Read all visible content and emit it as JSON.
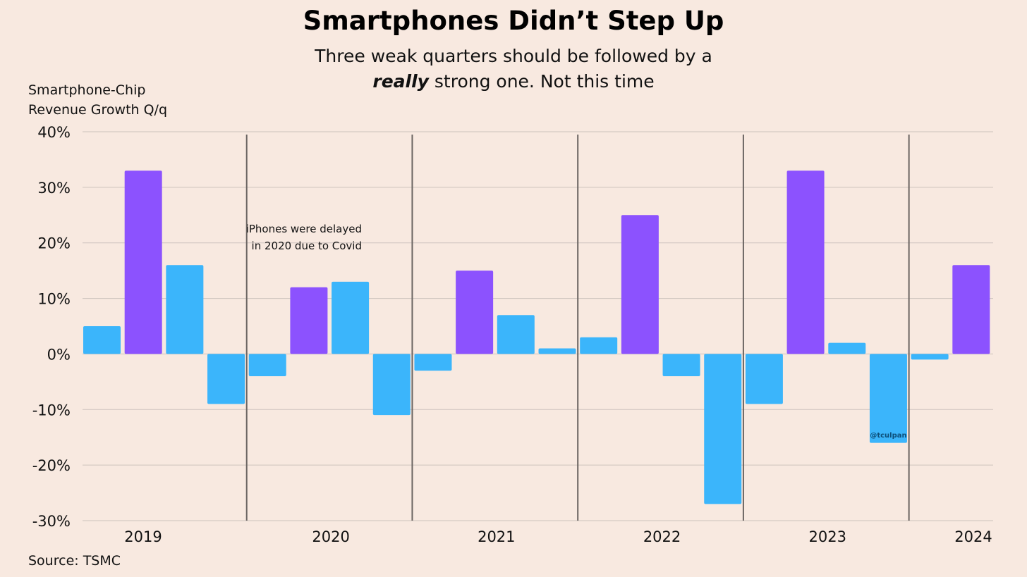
{
  "chart_data": {
    "type": "bar",
    "title": "Smartphones Didn’t Step Up",
    "subtitle_line1": "Three weak quarters should be followed by a",
    "subtitle_emphasis": "really",
    "subtitle_line2_rest": " strong one. Not this time",
    "ylabel_line1": "Smartphone-Chip",
    "ylabel_line2": "Revenue Growth Q/q",
    "source": "Source: TSMC",
    "annotation_line1": "iPhones were delayed",
    "annotation_line2": "in 2020 due to Covid",
    "watermark": "@tculpan",
    "ylim": [
      -30,
      40
    ],
    "yticks": [
      40,
      30,
      20,
      10,
      0,
      -10,
      -20,
      -30
    ],
    "ytick_labels": [
      "40%",
      "30%",
      "20%",
      "10%",
      "0%",
      "-10%",
      "-20%",
      "-30%"
    ],
    "year_labels": [
      "2019",
      "2020",
      "2021",
      "2022",
      "2023",
      "2024"
    ],
    "grid": true,
    "colors": {
      "regular": "#3bb5fb",
      "strong": "#8c52fe",
      "divider": "#6b6562",
      "grid": "#cdc3bd"
    },
    "quarters": [
      {
        "year": "2019",
        "q": "Q1",
        "value": 5,
        "highlight": false
      },
      {
        "year": "2019",
        "q": "Q2",
        "value": 33,
        "highlight": true
      },
      {
        "year": "2019",
        "q": "Q3",
        "value": 16,
        "highlight": false
      },
      {
        "year": "2019",
        "q": "Q4",
        "value": -9,
        "highlight": false
      },
      {
        "year": "2020",
        "q": "Q1",
        "value": -4,
        "highlight": false
      },
      {
        "year": "2020",
        "q": "Q2",
        "value": 12,
        "highlight": true
      },
      {
        "year": "2020",
        "q": "Q3",
        "value": 13,
        "highlight": false
      },
      {
        "year": "2020",
        "q": "Q4",
        "value": -11,
        "highlight": false
      },
      {
        "year": "2021",
        "q": "Q1",
        "value": -3,
        "highlight": false
      },
      {
        "year": "2021",
        "q": "Q2",
        "value": 15,
        "highlight": true
      },
      {
        "year": "2021",
        "q": "Q3",
        "value": 7,
        "highlight": false
      },
      {
        "year": "2021",
        "q": "Q4",
        "value": 1,
        "highlight": false
      },
      {
        "year": "2022",
        "q": "Q1",
        "value": 3,
        "highlight": false
      },
      {
        "year": "2022",
        "q": "Q2",
        "value": 25,
        "highlight": true
      },
      {
        "year": "2022",
        "q": "Q3",
        "value": -4,
        "highlight": false
      },
      {
        "year": "2022",
        "q": "Q4",
        "value": -27,
        "highlight": false
      },
      {
        "year": "2023",
        "q": "Q1",
        "value": -9,
        "highlight": false
      },
      {
        "year": "2023",
        "q": "Q2",
        "value": 33,
        "highlight": true
      },
      {
        "year": "2023",
        "q": "Q3",
        "value": 2,
        "highlight": false
      },
      {
        "year": "2023",
        "q": "Q4",
        "value": -16,
        "highlight": false
      },
      {
        "year": "2024",
        "q": "Q1",
        "value": -1,
        "highlight": false
      },
      {
        "year": "2024",
        "q": "Q2",
        "value": 16,
        "highlight": true
      }
    ]
  }
}
